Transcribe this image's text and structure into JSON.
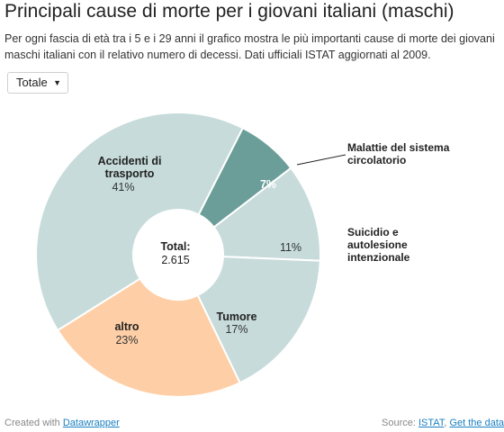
{
  "header": {
    "title": "Principali cause di morte per i giovani italiani (maschi)",
    "intro": "Per ogni fascia di età tra i 5 e i 29 anni il grafico mostra le più importanti cause di morte dei giovani maschi italiani con il relativo numero di decessi. Dati ufficiali ISTAT aggiornati al 2009."
  },
  "filter": {
    "selected": "Totale"
  },
  "chart_data": {
    "type": "pie",
    "donut": true,
    "center_label": "Total:",
    "center_value": "2.615",
    "slices": [
      {
        "label": "Malattie del sistema circolatorio",
        "percent_label": "7%",
        "value": 7,
        "color": "#6b9e99",
        "label_position": "outside"
      },
      {
        "label": "Suicidio e autolesione intenzionale",
        "percent_label": "11%",
        "value": 11,
        "color": "#c6dbda",
        "label_position": "outside"
      },
      {
        "label": "Tumore",
        "percent_label": "17%",
        "value": 17,
        "color": "#c6dbda",
        "label_position": "inside"
      },
      {
        "label": "altro",
        "percent_label": "23%",
        "value": 23,
        "color": "#fecfa6",
        "label_position": "inside"
      },
      {
        "label": "Accidenti di trasporto",
        "percent_label": "41%",
        "value": 41,
        "color": "#c6dbda",
        "label_position": "inside"
      }
    ]
  },
  "footer": {
    "created_prefix": "Created with",
    "created_link": "Datawrapper",
    "source_prefix": "Source:",
    "source_link": "ISTAT",
    "get_data_link": "Get the data"
  }
}
